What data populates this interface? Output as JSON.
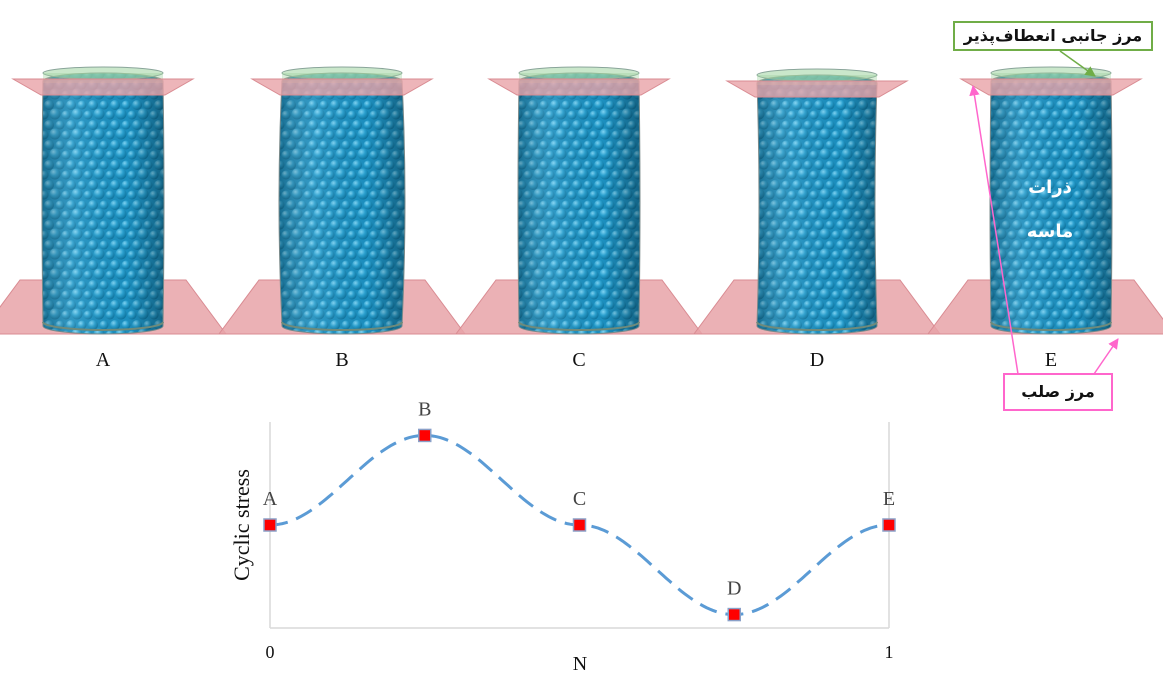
{
  "specimens": [
    {
      "label": "A"
    },
    {
      "label": "B"
    },
    {
      "label": "C"
    },
    {
      "label": "D"
    },
    {
      "label": "E"
    }
  ],
  "annotations": {
    "flexible_boundary": "مرز جانبی انعطاف‌پذیر",
    "rigid_boundary": "مرز صلب",
    "sand_particles_line1": "ذرات",
    "sand_particles_line2": "ماسه"
  },
  "colors": {
    "particles": "#2aa0cf",
    "rigid_plate": "#e8a3a8",
    "membrane": "#9fd3a0",
    "curve": "#5b9bd5",
    "marker": "#ff0000",
    "callout_green": "#70ad47",
    "callout_pink": "#ff66cc"
  },
  "chart_data": {
    "type": "line",
    "xlabel": "N",
    "ylabel": "Cyclic stress",
    "x_ticks": [
      "0",
      "1"
    ],
    "xlim": [
      0,
      1
    ],
    "ylim": [
      -1.15,
      1.15
    ],
    "line_style": "dashed",
    "series": [
      {
        "points": [
          {
            "x": 0,
            "y": 0,
            "label": "A"
          },
          {
            "x": 0.25,
            "y": 1,
            "label": "B"
          },
          {
            "x": 0.5,
            "y": 0,
            "label": "C"
          },
          {
            "x": 0.75,
            "y": -1,
            "label": "D"
          },
          {
            "x": 1,
            "y": 0,
            "label": "E"
          }
        ]
      }
    ]
  }
}
